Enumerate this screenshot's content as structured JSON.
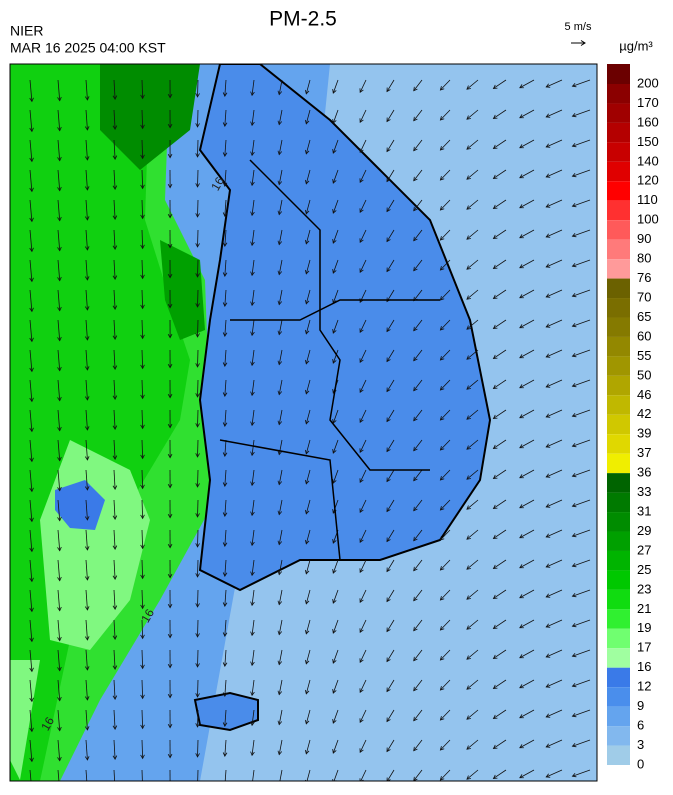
{
  "header": {
    "title": "PM-2.5",
    "agency": "NIER",
    "time": "MAR 16 2025 04:00 KST",
    "wind_scale": "5 m/s"
  },
  "colorbar": {
    "unit": "µg/m³",
    "levels": [
      200,
      170,
      160,
      150,
      140,
      120,
      110,
      100,
      90,
      80,
      76,
      70,
      65,
      60,
      55,
      50,
      46,
      42,
      39,
      37,
      36,
      33,
      31,
      29,
      27,
      25,
      23,
      21,
      19,
      17,
      16,
      12,
      9,
      6,
      3,
      0
    ],
    "colors": [
      "#6b0000",
      "#8b0000",
      "#a00000",
      "#b40000",
      "#c80000",
      "#e00000",
      "#ff0000",
      "#ff3030",
      "#ff5a5a",
      "#ff7a7a",
      "#ff9a9a",
      "#6b6100",
      "#7a6e00",
      "#857a00",
      "#938800",
      "#a09600",
      "#b0a600",
      "#c0b800",
      "#d0c800",
      "#e0d800",
      "#f0ee00",
      "#006400",
      "#007a00",
      "#008c00",
      "#00a000",
      "#00b400",
      "#00c800",
      "#10dc10",
      "#30f030",
      "#70ff70",
      "#a0ffa0",
      "#3a7ae8",
      "#4a8eec",
      "#64a4ee",
      "#82b8ee",
      "#a0cce8"
    ]
  },
  "map": {
    "contour_labels": [
      "16",
      "16",
      "16"
    ]
  }
}
